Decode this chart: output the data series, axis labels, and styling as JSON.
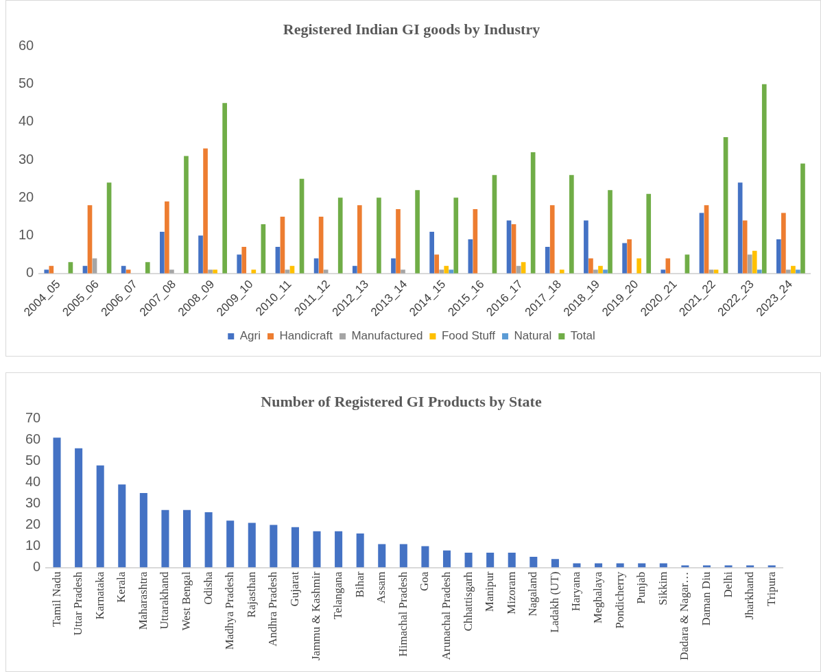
{
  "chart_data": [
    {
      "type": "bar",
      "title": "Registered Indian GI goods by Industry",
      "categories": [
        "2004_05",
        "2005_06",
        "2006_07",
        "2007_08",
        "2008_09",
        "2009_10",
        "2010_11",
        "2011_12",
        "2012_13",
        "2013_14",
        "2014_15",
        "2015_16",
        "2016_17",
        "2017_18",
        "2018_19",
        "2019_20",
        "2020_21",
        "2021_22",
        "2022_23",
        "2023_24"
      ],
      "series": [
        {
          "name": "Agri",
          "color": "#4472c4",
          "values": [
            1,
            2,
            2,
            11,
            10,
            5,
            7,
            4,
            2,
            4,
            11,
            9,
            14,
            7,
            14,
            8,
            1,
            16,
            24,
            9
          ]
        },
        {
          "name": "Handicraft",
          "color": "#ed7d31",
          "values": [
            2,
            18,
            1,
            19,
            33,
            7,
            15,
            15,
            18,
            17,
            5,
            17,
            13,
            18,
            4,
            9,
            4,
            18,
            14,
            16
          ]
        },
        {
          "name": "Manufactured",
          "color": "#a5a5a5",
          "values": [
            0,
            4,
            0,
            1,
            1,
            0,
            1,
            1,
            0,
            1,
            1,
            0,
            2,
            0,
            1,
            0,
            0,
            1,
            5,
            1
          ]
        },
        {
          "name": "Food Stuff",
          "color": "#ffc000",
          "values": [
            0,
            0,
            0,
            0,
            1,
            1,
            2,
            0,
            0,
            0,
            2,
            0,
            3,
            1,
            2,
            4,
            0,
            1,
            6,
            2
          ]
        },
        {
          "name": "Natural",
          "color": "#5b9bd5",
          "values": [
            0,
            0,
            0,
            0,
            0,
            0,
            0,
            0,
            0,
            0,
            1,
            0,
            0,
            0,
            1,
            0,
            0,
            0,
            1,
            1
          ]
        },
        {
          "name": "Total",
          "color": "#70ad47",
          "values": [
            3,
            24,
            3,
            31,
            45,
            13,
            25,
            20,
            20,
            22,
            20,
            26,
            32,
            26,
            22,
            21,
            5,
            36,
            50,
            29
          ]
        }
      ],
      "ylim": [
        0,
        60
      ],
      "yticks": [
        0,
        10,
        20,
        30,
        40,
        50,
        60
      ],
      "grid": false,
      "legend": "bottom"
    },
    {
      "type": "bar",
      "title": "Number of Registered GI Products by State",
      "categories": [
        "Tamil Nadu",
        "Uttar Pradesh",
        "Karnataka",
        "Kerala",
        "Maharashtra",
        "Uttarakhand",
        "West Bengal",
        "Odisha",
        "Madhya Pradesh",
        "Rajasthan",
        "Andhra Pradesh",
        "Gujarat",
        "Jammu & Kashmir",
        "Telangana",
        "Bihar",
        "Assam",
        "Himachal Pradesh",
        "Goa",
        "Arunachal Pradesh",
        "Chhattisgarh",
        "Manipur",
        "Mizoram",
        "Nagaland",
        "Ladakh (UT)",
        "Haryana",
        "Meghalaya",
        "Pondicherry",
        "Punjab",
        "Sikkim",
        "Dadara & Nagar…",
        "Daman Diu",
        "Delhi",
        "Jharkhand",
        "Tripura"
      ],
      "values": [
        61,
        56,
        48,
        39,
        35,
        27,
        27,
        26,
        22,
        21,
        20,
        19,
        17,
        17,
        16,
        11,
        11,
        10,
        8,
        7,
        7,
        7,
        5,
        4,
        2,
        2,
        2,
        2,
        2,
        1,
        1,
        1,
        1,
        1
      ],
      "color": "#4472c4",
      "ylim": [
        0,
        70
      ],
      "yticks": [
        0,
        10,
        20,
        30,
        40,
        50,
        60,
        70
      ],
      "grid": false
    }
  ]
}
